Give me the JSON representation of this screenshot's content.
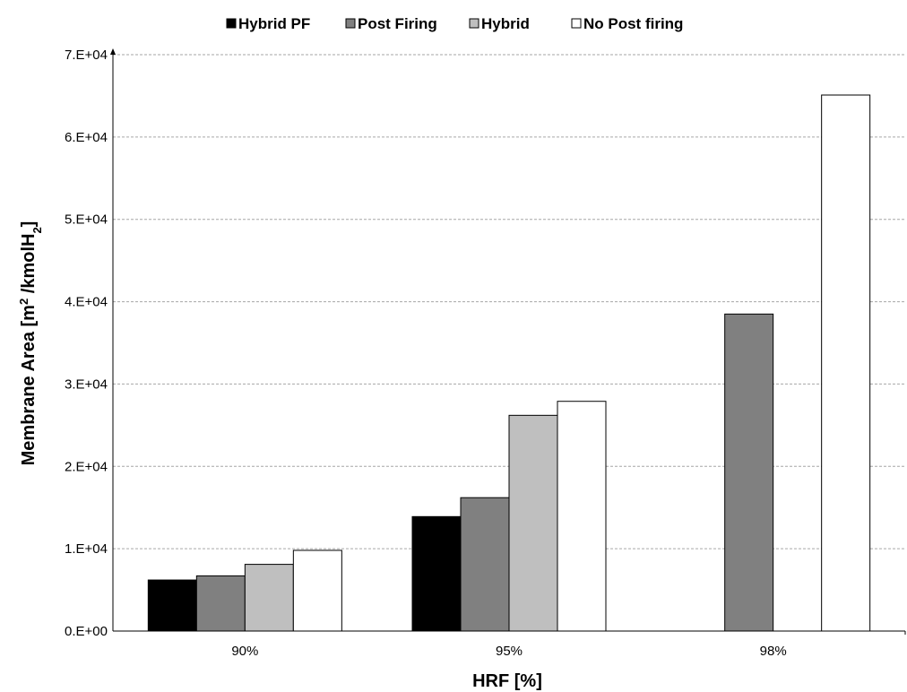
{
  "chart_data": {
    "type": "bar",
    "title": "",
    "xlabel": "HRF [%]",
    "ylabel": {
      "main": "Membrane Area [m",
      "sup": "2",
      "mid": " /kmolH",
      "sub": "2",
      "end": "]"
    },
    "categories": [
      "90%",
      "95%",
      "98%"
    ],
    "ylim": [
      0,
      70000
    ],
    "yticks": [
      {
        "value": 0,
        "label": "0.E+00"
      },
      {
        "value": 10000,
        "label": "1.E+04"
      },
      {
        "value": 20000,
        "label": "2.E+04"
      },
      {
        "value": 30000,
        "label": "3.E+04"
      },
      {
        "value": 40000,
        "label": "4.E+04"
      },
      {
        "value": 50000,
        "label": "5.E+04"
      },
      {
        "value": 60000,
        "label": "6.E+04"
      },
      {
        "value": 70000,
        "label": "7.E+04"
      }
    ],
    "grid": true,
    "legend_position": "top",
    "series": [
      {
        "name": "Hybrid PF",
        "color": "#000000",
        "values": [
          6200,
          13900,
          0
        ]
      },
      {
        "name": "Post Firing",
        "color": "#808080",
        "values": [
          6700,
          16200,
          38500
        ]
      },
      {
        "name": "Hybrid",
        "color": "#bfbfbf",
        "values": [
          8100,
          26200,
          0
        ]
      },
      {
        "name": "No Post firing",
        "color": "#ffffff",
        "values": [
          9800,
          27900,
          65100
        ]
      }
    ]
  }
}
